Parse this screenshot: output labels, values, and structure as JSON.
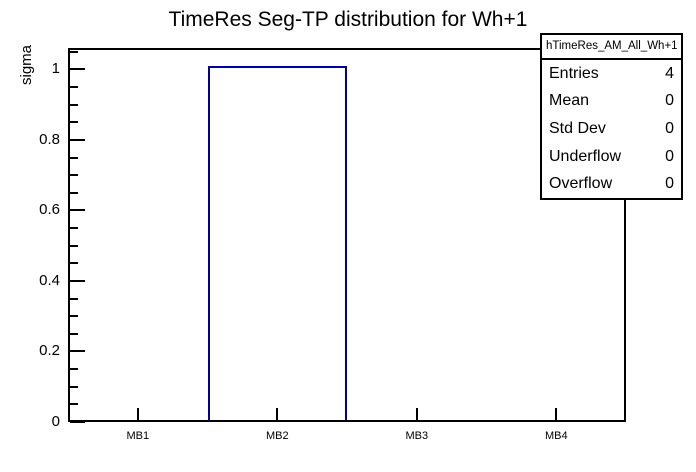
{
  "page": {
    "title": "TimeRes Seg-TP distribution for Wh+1"
  },
  "y_axis": {
    "label": "sigma",
    "tick_labels": [
      "0",
      "0.2",
      "0.4",
      "0.6",
      "0.8",
      "1"
    ],
    "major_step": 0.2,
    "minor_step": 0.05,
    "max": 1.0605
  },
  "x_axis": {
    "categories": [
      "MB1",
      "MB2",
      "MB3",
      "MB4"
    ]
  },
  "stats_box": {
    "title": "hTimeRes_AM_All_Wh+1",
    "rows": [
      {
        "label": "Entries",
        "value": "4"
      },
      {
        "label": "Mean",
        "value": "0"
      },
      {
        "label": "Std Dev",
        "value": "0"
      },
      {
        "label": "Underflow",
        "value": "0"
      },
      {
        "label": "Overflow",
        "value": "0"
      }
    ]
  },
  "colors": {
    "histogram_line": "#000099",
    "axis_line": "#000000",
    "background": "#ffffff"
  },
  "chart_data": {
    "type": "bar",
    "title": "TimeRes Seg-TP distribution for Wh+1",
    "categories": [
      "MB1",
      "MB2",
      "MB3",
      "MB4"
    ],
    "values": [
      0,
      1.01,
      0,
      0
    ],
    "xlabel": "",
    "ylabel": "sigma",
    "ylim": [
      0,
      1.0605
    ],
    "grid": false,
    "legend": false,
    "bar_style": "outline-only",
    "stats": {
      "name": "hTimeRes_AM_All_Wh+1",
      "entries": 4,
      "mean": 0,
      "std_dev": 0,
      "underflow": 0,
      "overflow": 0
    }
  }
}
